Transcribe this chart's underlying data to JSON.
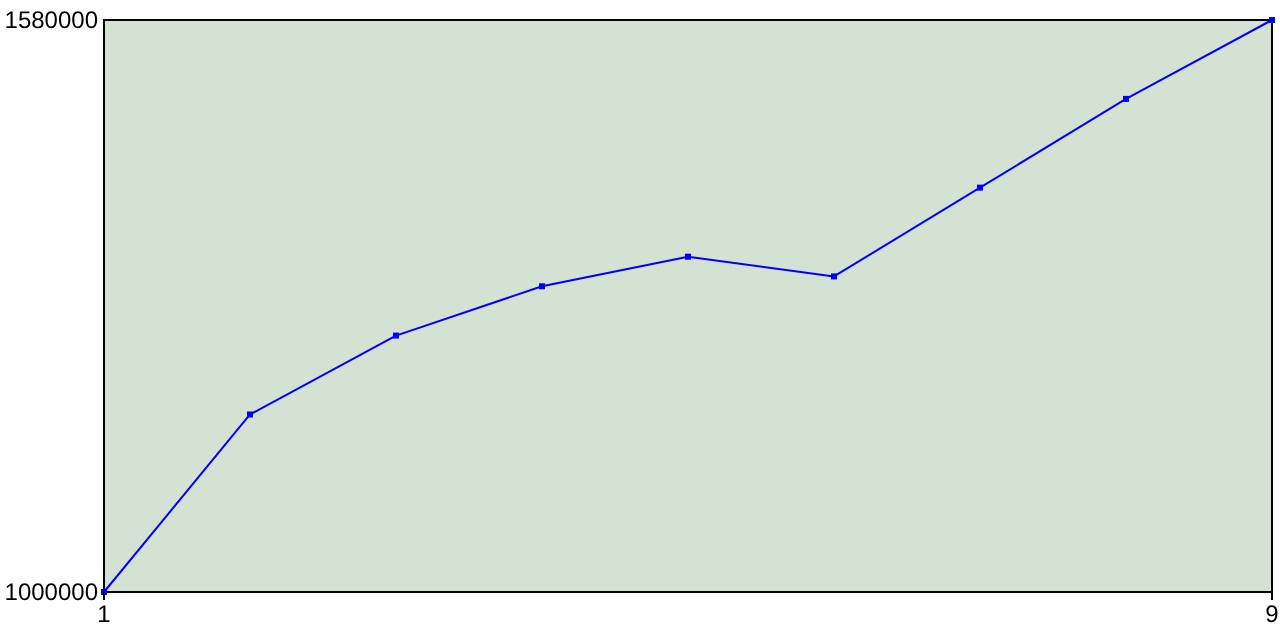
{
  "chart_data": {
    "type": "line",
    "x": [
      1,
      2,
      3,
      4,
      5,
      6,
      7,
      8,
      9
    ],
    "series": [
      {
        "color": "#0000ff",
        "values": [
          1000000,
          1180000,
          1260000,
          1310000,
          1340000,
          1320000,
          1410000,
          1500000,
          1580000
        ]
      }
    ],
    "xlim": [
      1,
      9
    ],
    "xticks": [
      1,
      9
    ],
    "ylim": [
      1000000,
      1580000
    ],
    "yticks": [
      1000000,
      1580000
    ],
    "marker": "square",
    "line_style": "solid",
    "grid": false
  }
}
